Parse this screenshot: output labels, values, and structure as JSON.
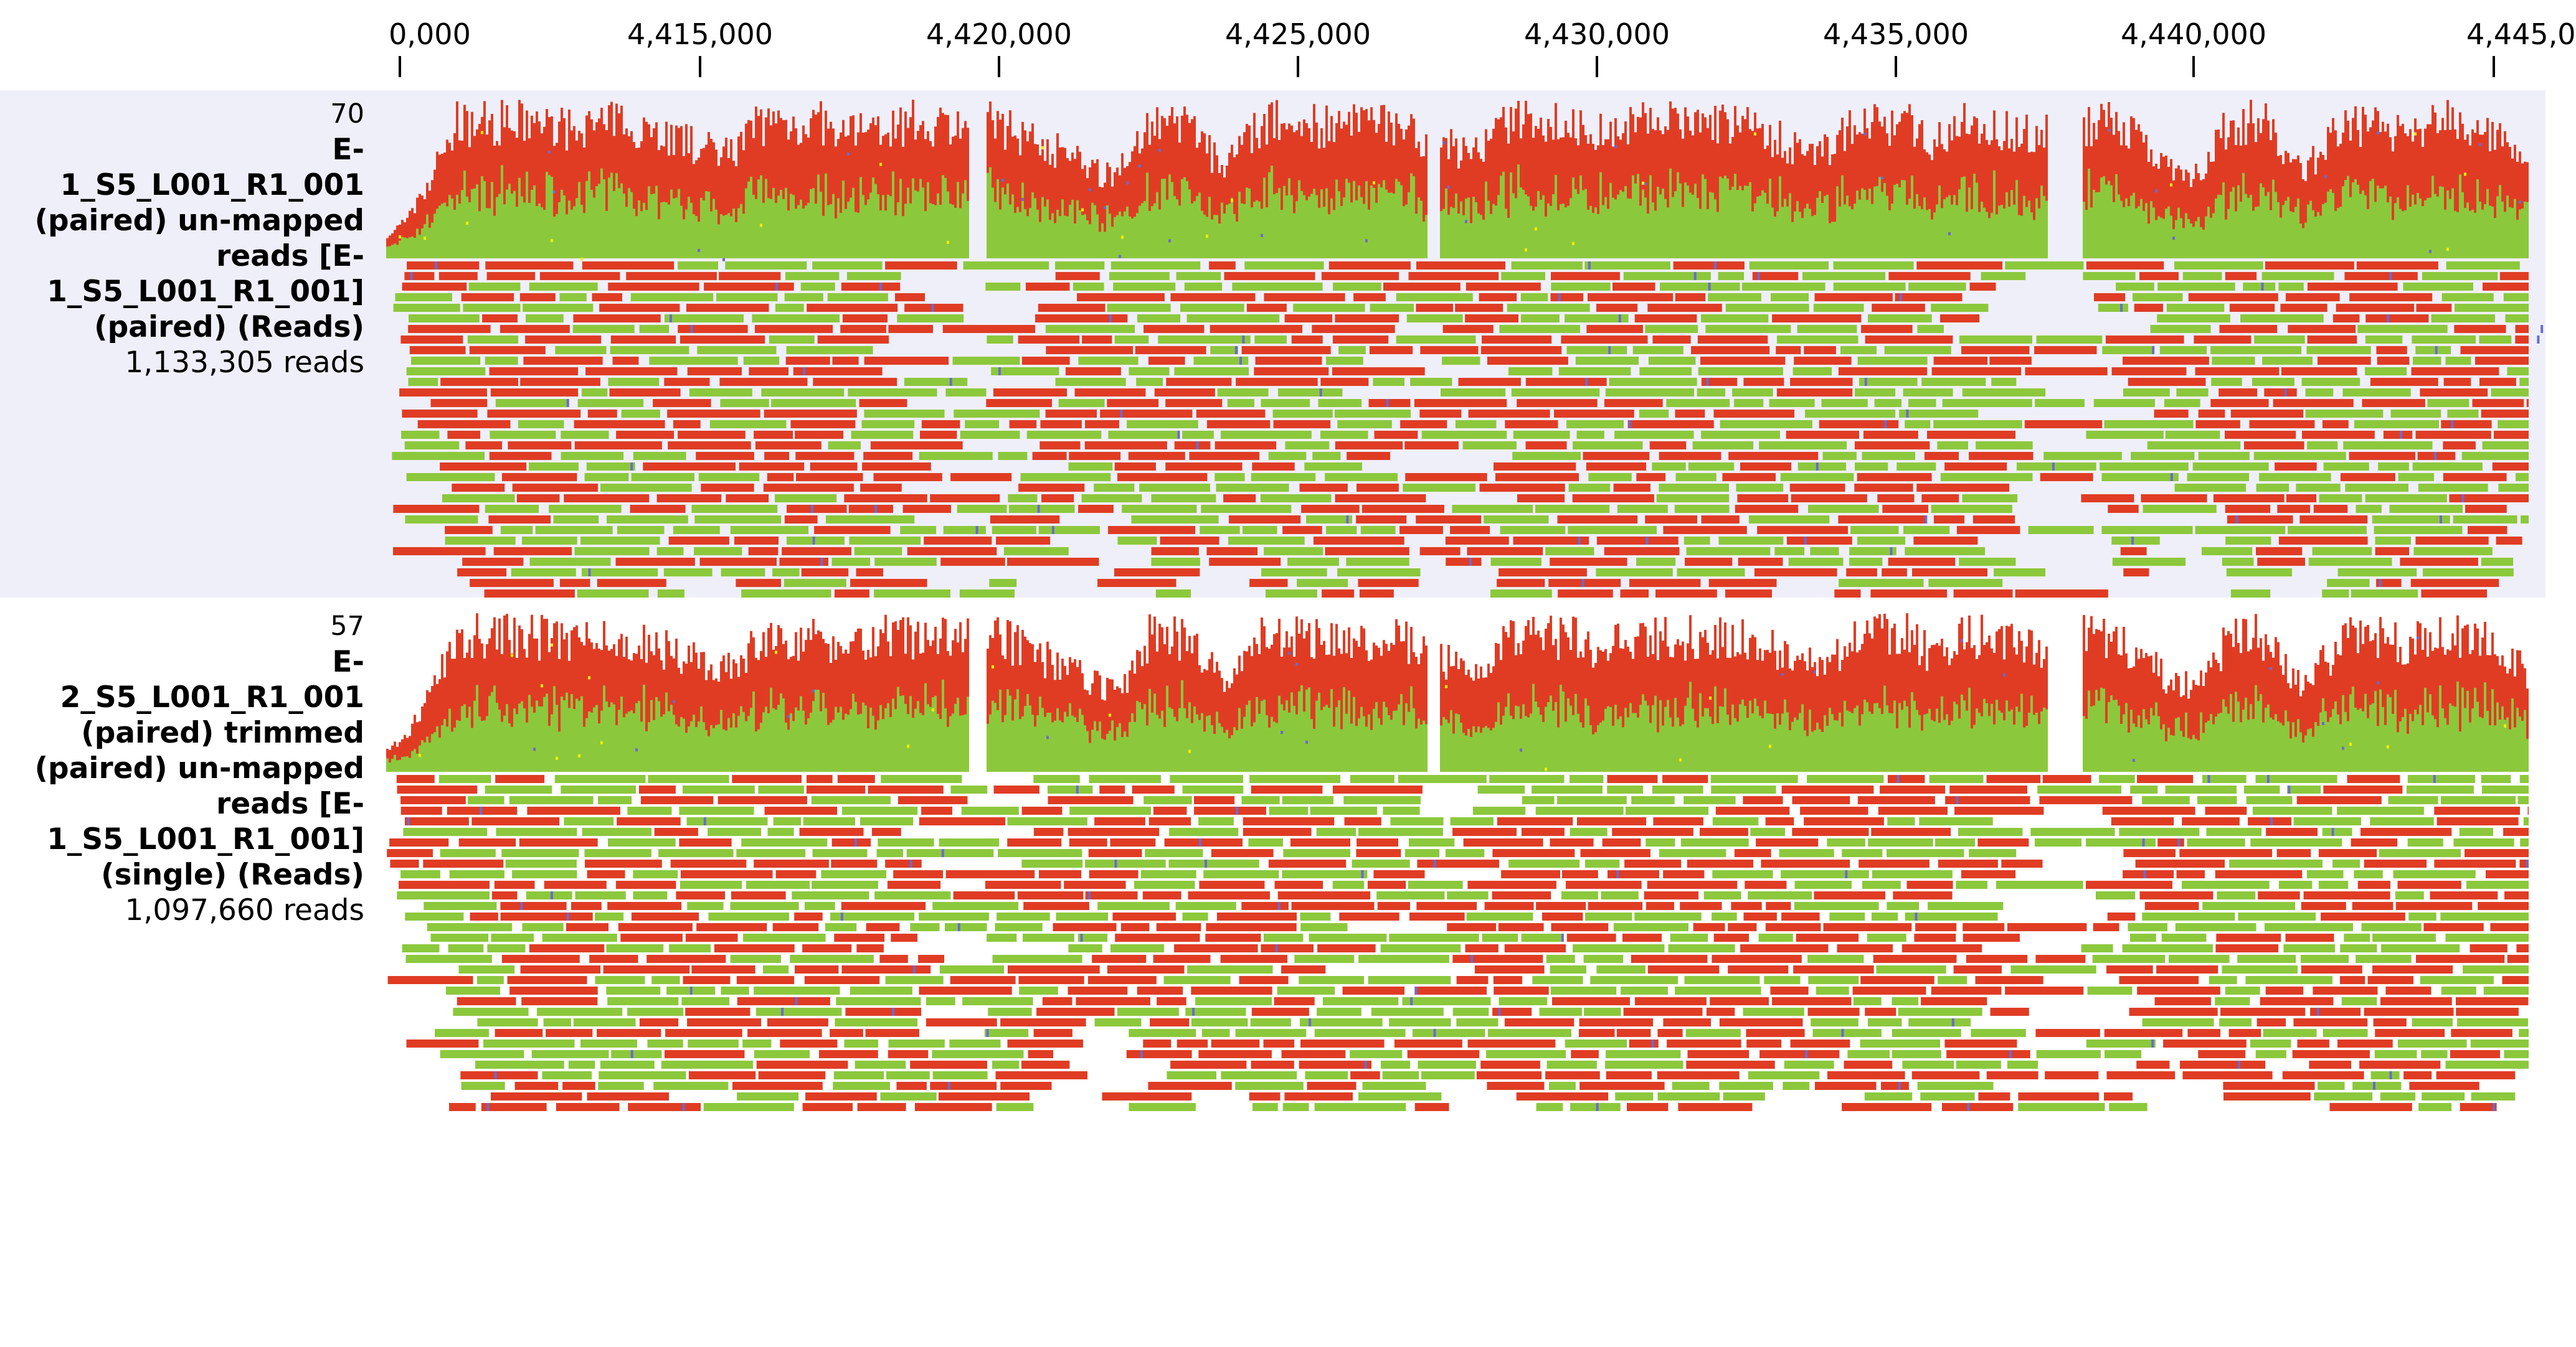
{
  "ruler": {
    "ticks": [
      "0,000",
      "4,415,000",
      "4,420,000",
      "4,425,000",
      "4,430,000",
      "4,435,000",
      "4,440,000",
      "4,445,0"
    ]
  },
  "tracks": [
    {
      "max_label": "70",
      "name_lines": [
        "E-",
        "1_S5_L001_R1_001",
        "(paired) un-mapped",
        "reads [E-",
        "1_S5_L001_R1_001]",
        "(paired) (Reads)"
      ],
      "count": "1,133,305 reads"
    },
    {
      "max_label": "57",
      "name_lines": [
        "E-",
        "2_S5_L001_R1_001",
        "(paired) trimmed",
        "(paired) un-mapped",
        "reads [E-",
        "1_S5_L001_R1_001]",
        "(single) (Reads)"
      ],
      "count": "1,097,660 reads"
    }
  ],
  "colors": {
    "coverage_red": "#e03c24",
    "coverage_green": "#8cc83c",
    "read_red": "#e03c24",
    "read_green": "#8cc83c",
    "mismatch_blue": "#6a6ad0",
    "mismatch_yellow": "#f0f000",
    "track1_bg": "#efeffa"
  }
}
